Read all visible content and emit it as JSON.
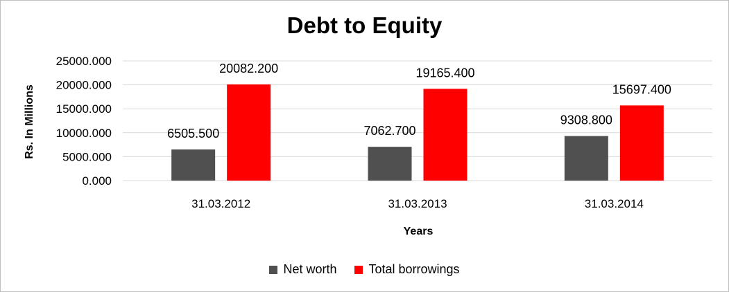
{
  "chart_data": {
    "type": "bar",
    "title": "Debt to Equity",
    "xlabel": "Years",
    "ylabel": "Rs. In Millions",
    "categories": [
      "31.03.2012",
      "31.03.2013",
      "31.03.2014"
    ],
    "series": [
      {
        "name": "Net worth",
        "color": "#505050",
        "values": [
          6505.5,
          7062.7,
          9308.8
        ],
        "labels": [
          "6505.500",
          "7062.700",
          "9308.800"
        ]
      },
      {
        "name": "Total borrowings",
        "color": "#ff0000",
        "values": [
          20082.2,
          19165.4,
          15697.4
        ],
        "labels": [
          "20082.200",
          "19165.400",
          "15697.400"
        ]
      }
    ],
    "ylim": [
      0,
      25000
    ],
    "yticks": [
      {
        "value": 0,
        "label": "0.000"
      },
      {
        "value": 5000,
        "label": "5000.000"
      },
      {
        "value": 10000,
        "label": "10000.000"
      },
      {
        "value": 15000,
        "label": "15000.000"
      },
      {
        "value": 20000,
        "label": "20000.000"
      },
      {
        "value": 25000,
        "label": "25000.000"
      }
    ],
    "grid": true,
    "legend_position": "bottom"
  }
}
